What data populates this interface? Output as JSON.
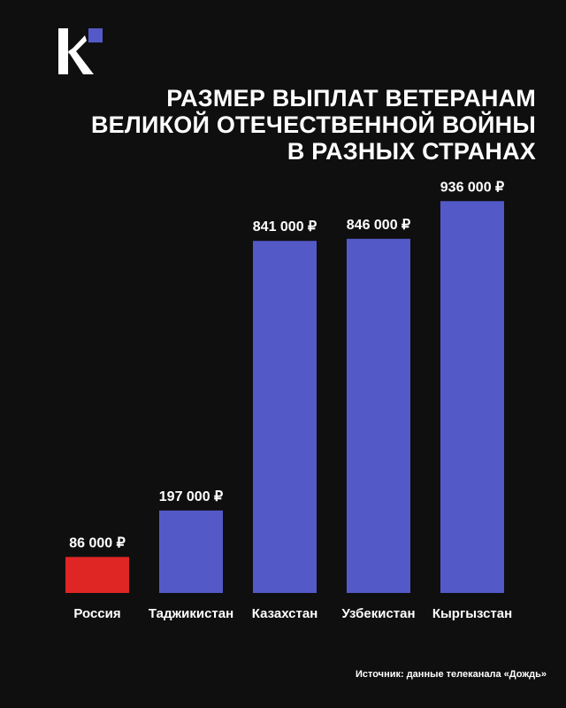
{
  "header": {
    "logo_letter": "K",
    "title_lines": [
      "РАЗМЕР ВЫПЛАТ ВЕТЕРАНАМ",
      "ВЕЛИКОЙ ОТЕЧЕСТВЕННОЙ ВОЙНЫ",
      "В РАЗНЫХ СТРАНАХ"
    ]
  },
  "chart_data": {
    "type": "bar",
    "title": "РАЗМЕР ВЫПЛАТ ВЕТЕРАНАМ ВЕЛИКОЙ ОТЕЧЕСТВЕННОЙ ВОЙНЫ В РАЗНЫХ СТРАНАХ",
    "categories": [
      "Россия",
      "Таджикистан",
      "Казахстан",
      "Узбекистан",
      "Кыргызстан"
    ],
    "values": [
      86000,
      197000,
      841000,
      846000,
      936000
    ],
    "value_labels": [
      "86 000 ₽",
      "197 000 ₽",
      "841 000 ₽",
      "846 000 ₽",
      "936 000 ₽"
    ],
    "colors": [
      "#e02525",
      "#5459c8",
      "#5459c8",
      "#5459c8",
      "#5459c8"
    ],
    "xlabel": "",
    "ylabel": "",
    "ylim": [
      0,
      1000000
    ],
    "grid": false,
    "legend": "none"
  },
  "footer": {
    "source": "Источник: данные телеканала «Дождь»"
  },
  "colors": {
    "background": "#0f0f0f",
    "accent": "#5459c8",
    "highlight": "#e02525",
    "text": "#ffffff"
  }
}
